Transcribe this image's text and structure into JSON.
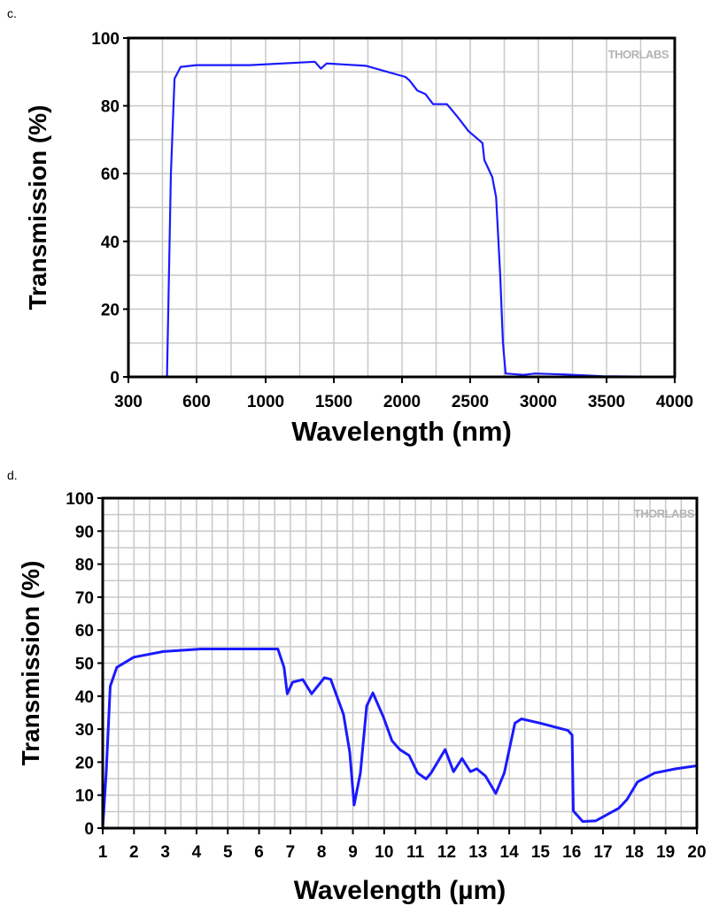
{
  "chart_data": [
    {
      "panel_label": "c.",
      "type": "line",
      "title": "",
      "xlabel": "Wavelength (nm)",
      "ylabel": "Transmission (%)",
      "watermark": "THORLABS",
      "xticks": [
        300,
        600,
        1000,
        1500,
        2000,
        2500,
        3000,
        3500,
        4000
      ],
      "yticks": [
        0,
        20,
        40,
        60,
        80,
        100
      ],
      "xlim": [
        300,
        4000
      ],
      "ylim": [
        0,
        100
      ],
      "grid": true,
      "line_color": "#1a1aff",
      "series": [
        {
          "name": "Transmission",
          "x": [
            417,
            470,
            487,
            503,
            530,
            600,
            908,
            1361,
            1405,
            1448,
            1737,
            2026,
            2055,
            2113,
            2171,
            2228,
            2329,
            2402,
            2488,
            2590,
            2604,
            2662,
            2690,
            2720,
            2740,
            2760,
            2890,
            2977,
            3208,
            3468,
            4000
          ],
          "y": [
            0,
            0,
            60,
            88,
            91.5,
            92,
            92,
            93,
            91,
            92.5,
            91.8,
            88.5,
            87.5,
            84.5,
            83.5,
            80.5,
            80.5,
            77,
            72.5,
            69,
            64,
            59,
            53,
            30,
            10,
            1,
            0.6,
            1,
            0.7,
            0.2,
            0
          ]
        }
      ]
    },
    {
      "panel_label": "d.",
      "type": "line",
      "title": "",
      "xlabel": "Wavelength (µm)",
      "ylabel": "Transmission (%)",
      "watermark": "THORLABS",
      "xticks": [
        1,
        2,
        3,
        4,
        5,
        6,
        7,
        8,
        9,
        10,
        11,
        12,
        13,
        14,
        15,
        16,
        17,
        18,
        19,
        20
      ],
      "yticks": [
        0,
        10,
        20,
        30,
        40,
        50,
        60,
        70,
        80,
        90,
        100
      ],
      "xlim": [
        1,
        20
      ],
      "ylim": [
        0,
        100
      ],
      "grid": true,
      "line_color": "#1a1aff",
      "series": [
        {
          "name": "Transmission",
          "x": [
            1,
            1.11,
            1.24,
            1.45,
            1.99,
            2.94,
            4.16,
            6.6,
            6.8,
            6.9,
            7.07,
            7.4,
            7.68,
            8.09,
            8.29,
            8.7,
            8.9,
            9.04,
            9.24,
            9.44,
            9.64,
            9.98,
            10.25,
            10.5,
            10.8,
            11.07,
            11.34,
            11.5,
            11.95,
            12.22,
            12.49,
            12.76,
            12.96,
            13.24,
            13.57,
            13.84,
            14.18,
            14.39,
            15,
            15.88,
            16.01,
            16.05,
            16.35,
            16.76,
            17.5,
            17.77,
            18.1,
            18.65,
            19.33,
            20
          ],
          "y": [
            0,
            16.7,
            43,
            48.7,
            51.8,
            53.5,
            54.3,
            54.3,
            48.7,
            40.7,
            44.2,
            45,
            40.7,
            45.6,
            45.1,
            34.5,
            23,
            7,
            16.7,
            37,
            41,
            33.6,
            26.5,
            23.8,
            22,
            16.7,
            14.9,
            16.7,
            23.8,
            17.1,
            21.1,
            17.1,
            18,
            15.8,
            10.5,
            16.7,
            31.8,
            33.1,
            31.8,
            29.6,
            28.2,
            5.2,
            2,
            2.2,
            6,
            8.7,
            14,
            16.7,
            18,
            18.9
          ]
        }
      ]
    }
  ]
}
